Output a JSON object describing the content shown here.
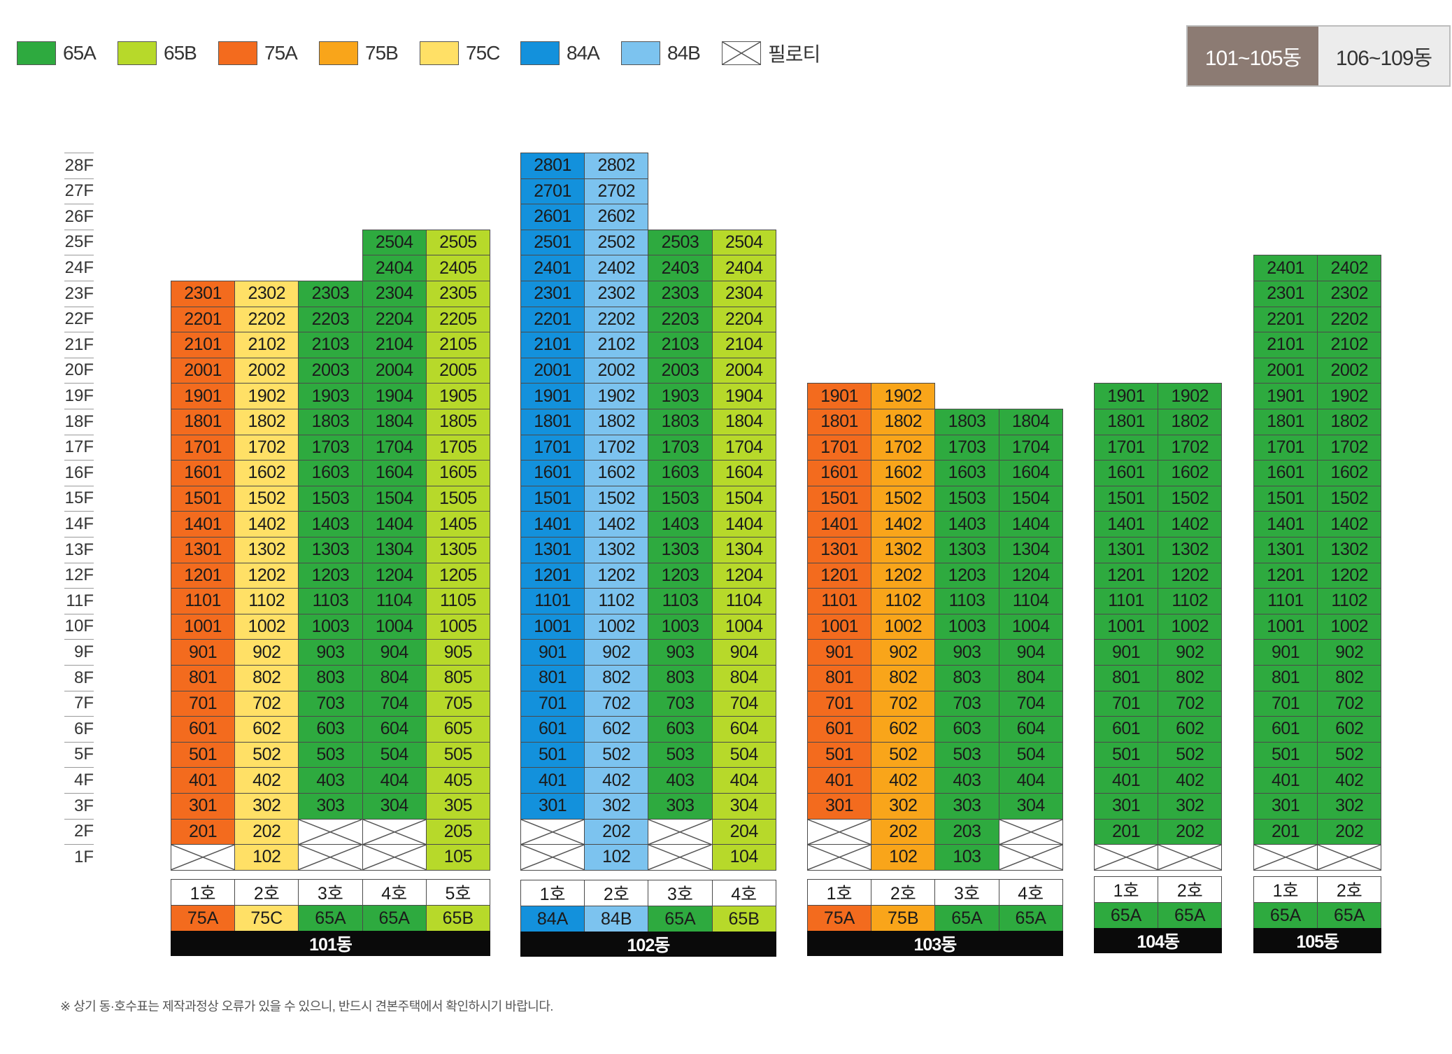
{
  "colors": {
    "65A": "#2eaa3f",
    "65B": "#b7d92a",
    "75A": "#f36b1e",
    "75B": "#f9a51a",
    "75C": "#ffe066",
    "84A": "#1391dc",
    "84B": "#7cc3ef"
  },
  "legend": [
    {
      "type": "65A",
      "label": "65A"
    },
    {
      "type": "65B",
      "label": "65B"
    },
    {
      "type": "75A",
      "label": "75A"
    },
    {
      "type": "75B",
      "label": "75B"
    },
    {
      "type": "75C",
      "label": "75C"
    },
    {
      "type": "84A",
      "label": "84A"
    },
    {
      "type": "84B",
      "label": "84B"
    },
    {
      "type": "piloti",
      "label": "필로티"
    }
  ],
  "toggle": [
    {
      "label": "101~105동",
      "active": true
    },
    {
      "label": "106~109동",
      "active": false
    }
  ],
  "floors": [
    "28F",
    "27F",
    "26F",
    "25F",
    "24F",
    "23F",
    "22F",
    "21F",
    "20F",
    "19F",
    "18F",
    "17F",
    "16F",
    "15F",
    "14F",
    "13F",
    "12F",
    "11F",
    "10F",
    "9F",
    "8F",
    "7F",
    "6F",
    "5F",
    "4F",
    "3F",
    "2F",
    "1F"
  ],
  "buildings": [
    {
      "name": "101동",
      "units": [
        {
          "label": "1호",
          "type": "75A",
          "top": 23,
          "piloti": [
            1
          ]
        },
        {
          "label": "2호",
          "type": "75C",
          "top": 23,
          "piloti": []
        },
        {
          "label": "3호",
          "type": "65A",
          "top": 23,
          "piloti": [
            1,
            2
          ]
        },
        {
          "label": "4호",
          "type": "65A",
          "top": 25,
          "piloti": [
            1,
            2
          ]
        },
        {
          "label": "5호",
          "type": "65B",
          "top": 25,
          "piloti": []
        }
      ]
    },
    {
      "name": "102동",
      "units": [
        {
          "label": "1호",
          "type": "84A",
          "top": 28,
          "piloti": [
            1,
            2
          ]
        },
        {
          "label": "2호",
          "type": "84B",
          "top": 28,
          "piloti": []
        },
        {
          "label": "3호",
          "type": "65A",
          "top": 25,
          "piloti": [
            1,
            2
          ]
        },
        {
          "label": "4호",
          "type": "65B",
          "top": 25,
          "piloti": []
        }
      ]
    },
    {
      "name": "103동",
      "units": [
        {
          "label": "1호",
          "type": "75A",
          "top": 19,
          "piloti": [
            1,
            2
          ]
        },
        {
          "label": "2호",
          "type": "75B",
          "top": 19,
          "piloti": []
        },
        {
          "label": "3호",
          "type": "65A",
          "top": 18,
          "piloti": []
        },
        {
          "label": "4호",
          "type": "65A",
          "top": 18,
          "piloti": [
            1,
            2
          ]
        }
      ]
    },
    {
      "name": "104동",
      "units": [
        {
          "label": "1호",
          "type": "65A",
          "top": 19,
          "piloti": [
            1
          ]
        },
        {
          "label": "2호",
          "type": "65A",
          "top": 19,
          "piloti": [
            1
          ]
        }
      ]
    },
    {
      "name": "105동",
      "units": [
        {
          "label": "1호",
          "type": "65A",
          "top": 24,
          "piloti": [
            1
          ]
        },
        {
          "label": "2호",
          "type": "65A",
          "top": 24,
          "piloti": [
            1
          ]
        }
      ]
    }
  ],
  "footnote": "※ 상기 동·호수표는 제작과정상 오류가 있을 수 있으니, 반드시 견본주택에서 확인하시기 바랍니다."
}
